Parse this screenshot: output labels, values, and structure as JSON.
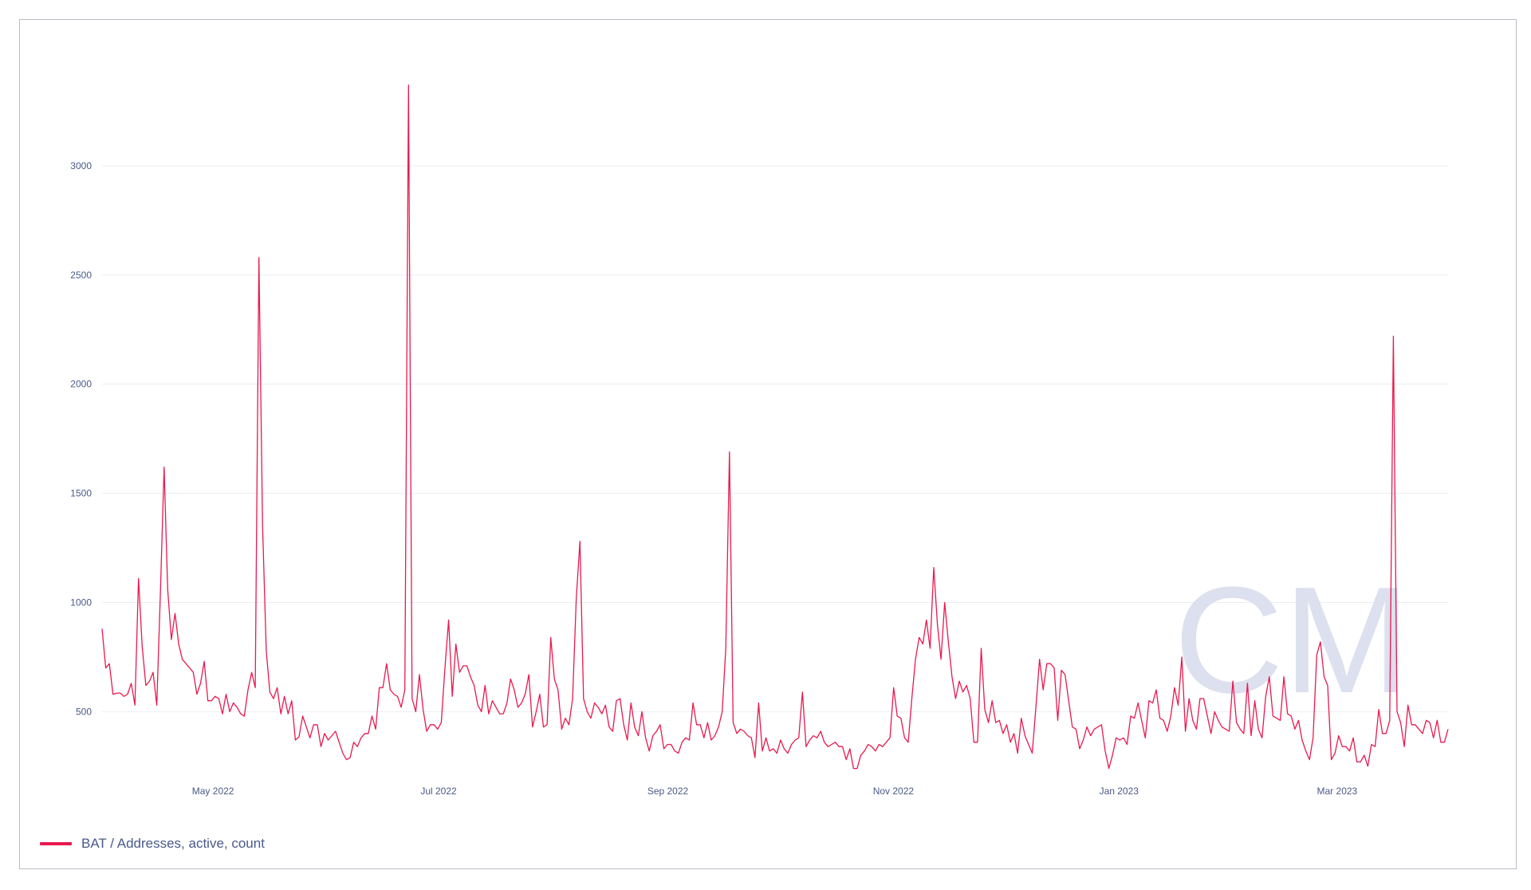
{
  "legend": {
    "label": "BAT / Addresses, active, count"
  },
  "colors": {
    "series": "#e8194f",
    "grid": "#eceef3",
    "axis_text": "#4a5a8a",
    "watermark": "#dde0ee"
  },
  "watermark": {
    "text": "CM"
  },
  "chart_data": {
    "type": "line",
    "title": "",
    "xlabel": "",
    "ylabel": "",
    "x_start": "2022-04-01",
    "x_end": "2023-03-31",
    "xlim": [
      "2022-04-01",
      "2023-03-31"
    ],
    "ylim": [
      180,
      3650
    ],
    "grid": true,
    "legend_position": "bottom-left",
    "y_ticks": [
      500,
      1000,
      1500,
      2000,
      2500,
      3000
    ],
    "y_tick_labels": [
      "500",
      "1000",
      "1500",
      "2000",
      "2500",
      "3000"
    ],
    "x_ticks": [
      "2022-05-01",
      "2022-07-01",
      "2022-09-01",
      "2022-11-01",
      "2023-01-01",
      "2023-03-01"
    ],
    "x_tick_labels": [
      "May 2022",
      "Jul 2022",
      "Sep 2022",
      "Nov 2022",
      "Jan 2023",
      "Mar 2023"
    ],
    "series": [
      {
        "name": "BAT / Addresses, active, count",
        "values": [
          880,
          700,
          720,
          580,
          585,
          585,
          570,
          580,
          630,
          530,
          1110,
          800,
          620,
          640,
          680,
          530,
          1050,
          1620,
          1060,
          830,
          950,
          810,
          740,
          720,
          700,
          680,
          580,
          630,
          730,
          550,
          550,
          570,
          560,
          490,
          580,
          500,
          540,
          520,
          490,
          480,
          600,
          680,
          610,
          2580,
          1350,
          780,
          590,
          560,
          610,
          490,
          570,
          490,
          550,
          370,
          385,
          480,
          430,
          380,
          440,
          440,
          340,
          400,
          370,
          390,
          410,
          360,
          310,
          280,
          290,
          360,
          340,
          380,
          400,
          400,
          480,
          420,
          610,
          610,
          720,
          600,
          580,
          570,
          520,
          600,
          3370,
          560,
          500,
          670,
          510,
          410,
          440,
          440,
          420,
          450,
          700,
          920,
          570,
          810,
          680,
          710,
          710,
          660,
          620,
          530,
          500,
          620,
          490,
          550,
          520,
          490,
          490,
          540,
          650,
          600,
          520,
          540,
          580,
          670,
          430,
          500,
          580,
          430,
          440,
          840,
          650,
          600,
          420,
          470,
          440,
          560,
          1020,
          1280,
          560,
          500,
          470,
          540,
          520,
          490,
          530,
          430,
          410,
          550,
          560,
          440,
          370,
          540,
          430,
          390,
          500,
          380,
          320,
          390,
          410,
          440,
          330,
          350,
          350,
          320,
          310,
          360,
          380,
          370,
          540,
          440,
          440,
          380,
          450,
          370,
          390,
          430,
          500,
          790,
          1690,
          450,
          400,
          420,
          410,
          390,
          380,
          290,
          540,
          320,
          380,
          320,
          330,
          310,
          370,
          330,
          310,
          350,
          370,
          380,
          590,
          340,
          370,
          390,
          380,
          410,
          360,
          340,
          350,
          360,
          340,
          340,
          280,
          330,
          240,
          240,
          300,
          320,
          350,
          340,
          320,
          350,
          340,
          360,
          380,
          610,
          480,
          470,
          380,
          360,
          560,
          740,
          840,
          810,
          920,
          790,
          1160,
          900,
          740,
          1000,
          820,
          660,
          560,
          640,
          590,
          620,
          560,
          360,
          360,
          790,
          510,
          450,
          550,
          450,
          460,
          400,
          440,
          360,
          400,
          310,
          470,
          390,
          350,
          310,
          520,
          740,
          600,
          720,
          720,
          700,
          460,
          690,
          670,
          550,
          430,
          420,
          330,
          370,
          430,
          390,
          420,
          430,
          440,
          320,
          240,
          300,
          380,
          370,
          380,
          350,
          480,
          470,
          540,
          460,
          380,
          550,
          540,
          600,
          470,
          460,
          410,
          480,
          610,
          530,
          750,
          410,
          560,
          460,
          420,
          560,
          560,
          480,
          400,
          500,
          460,
          430,
          420,
          410,
          640,
          450,
          420,
          400,
          630,
          390,
          550,
          420,
          380,
          570,
          660,
          480,
          470,
          460,
          660,
          490,
          480,
          420,
          460,
          370,
          320,
          280,
          380,
          760,
          820,
          660,
          620,
          280,
          310,
          390,
          340,
          340,
          320,
          380,
          270,
          270,
          300,
          250,
          350,
          340,
          510,
          400,
          400,
          460,
          2220,
          500,
          450,
          340,
          530,
          440,
          440,
          420,
          400,
          460,
          450,
          380,
          460,
          360,
          360,
          420
        ]
      }
    ]
  }
}
